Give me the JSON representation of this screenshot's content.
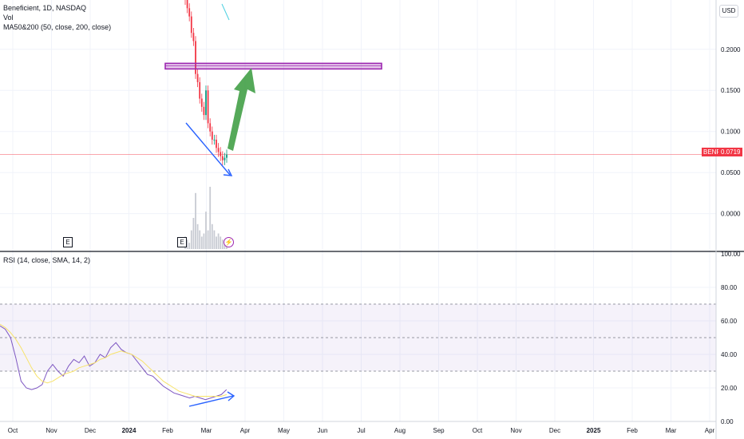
{
  "legend": {
    "symbol_line": "Beneficient, 1D, NASDAQ",
    "volume": "Vol",
    "ma": "MA50&200 (50, close, 200, close)",
    "rsi": "RSI (14, close, SMA, 14, 2)"
  },
  "currency": "USD",
  "ticker_badge": "BENF",
  "last_price": "0.0719",
  "event_marker": "E",
  "flash_marker": "⚡",
  "colors": {
    "up": "#089981",
    "down": "#f23645",
    "rsi": "#7e57c2",
    "rsi_ma": "#f7e36a",
    "annotation_line": "#2962ff",
    "arrow": "#43a047",
    "resistance_box": "#9c27b0"
  },
  "chart_data": [
    {
      "type": "candlestick",
      "title": "Beneficient, 1D, NASDAQ",
      "y_ticks": [
        "0.2000",
        "0.1500",
        "0.1000",
        "0.0500",
        "0.0000"
      ],
      "ylim": [
        -0.045,
        0.26
      ],
      "last_price": 0.0719,
      "x_ticks": [
        "Oct",
        "Nov",
        "Dec",
        "2024",
        "Feb",
        "Mar",
        "Apr",
        "May",
        "Jun",
        "Jul",
        "Aug",
        "Sep",
        "Oct",
        "Nov",
        "Dec",
        "2025",
        "Feb",
        "Mar",
        "Apr"
      ],
      "close_series": [
        0.26,
        0.25,
        0.24,
        0.22,
        0.21,
        0.17,
        0.16,
        0.14,
        0.13,
        0.12,
        0.15,
        0.11,
        0.1,
        0.09,
        0.09,
        0.08,
        0.075,
        0.07,
        0.065,
        0.068,
        0.072
      ],
      "volume_rel": [
        0.2,
        0.15,
        0.1,
        0.3,
        0.5,
        0.9,
        0.4,
        0.3,
        0.2,
        0.25,
        0.6,
        0.3,
        1.0,
        0.4,
        0.3,
        0.2,
        0.25,
        0.2,
        0.15,
        0.1,
        0.12
      ],
      "resistance_level": 0.18,
      "annotations": [
        "down-trend-line",
        "projected-up-arrow",
        "resistance-box"
      ]
    },
    {
      "type": "line",
      "title": "RSI (14, close, SMA, 14, 2)",
      "y_ticks": [
        "100.00",
        "80.00",
        "60.00",
        "40.00",
        "20.00",
        "0.00"
      ],
      "ylim": [
        0,
        100
      ],
      "band": [
        30,
        70
      ],
      "mid_level": 50,
      "series": [
        {
          "name": "RSI",
          "values": [
            57,
            55,
            50,
            38,
            24,
            20,
            19,
            20,
            22,
            30,
            34,
            30,
            27,
            33,
            37,
            35,
            39,
            33,
            35,
            40,
            38,
            44,
            47,
            43,
            41,
            40,
            36,
            32,
            28,
            27,
            24,
            21,
            19,
            17,
            16,
            15,
            14,
            15,
            14,
            13,
            14,
            15,
            16,
            19
          ]
        },
        {
          "name": "RSI-based MA",
          "values": [
            58,
            56,
            53,
            49,
            44,
            38,
            32,
            27,
            24,
            23,
            24,
            26,
            28,
            29,
            30,
            32,
            33,
            34,
            35,
            37,
            38,
            40,
            41,
            42,
            41,
            40,
            38,
            36,
            33,
            30,
            27,
            24,
            22,
            20,
            18,
            17,
            16,
            15,
            15,
            15,
            15,
            15,
            15,
            16
          ]
        }
      ]
    }
  ]
}
